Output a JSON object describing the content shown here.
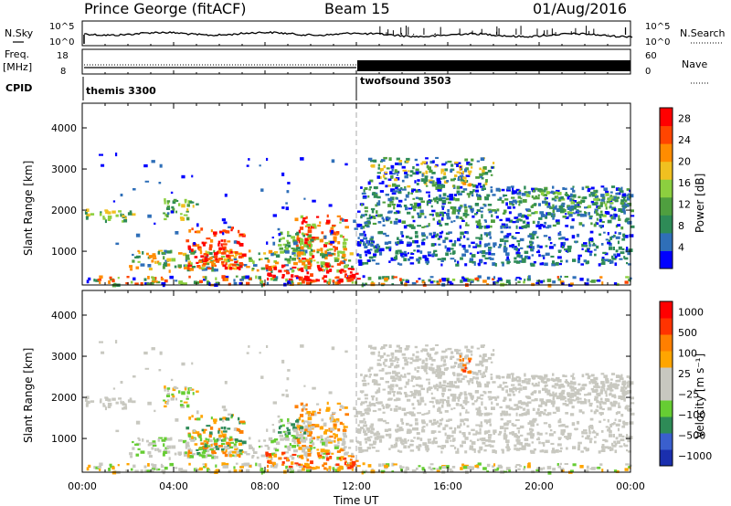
{
  "header": {
    "station": "Prince George (fitACF)",
    "beam": "Beam 15",
    "date": "01/Aug/2016"
  },
  "strip1": {
    "left_label": "N.Sky",
    "right_label": "N.Search",
    "left_ticks": [
      "10^5",
      "10^0"
    ],
    "right_ticks": [
      "10^5",
      "10^0"
    ]
  },
  "strip2": {
    "left_label_1": "Freq.",
    "left_label_2": "[MHz]",
    "right_label": "Nave",
    "left_ticks": [
      "18",
      "8"
    ],
    "right_ticks": [
      "60",
      "0"
    ]
  },
  "cpid": {
    "label": "CPID",
    "modes": [
      {
        "name": "themis 3300"
      },
      {
        "name": "twofsound 3503"
      }
    ]
  },
  "colors": {
    "power_scale": [
      "#0000ff",
      "#2f6fb8",
      "#2e8b57",
      "#4f9f3f",
      "#8ccf3f",
      "#f0c020",
      "#ff8c00",
      "#ff4500",
      "#ff0000"
    ],
    "velocity_scale": [
      "#1a2fae",
      "#3a5fcd",
      "#2e8b57",
      "#66cd33",
      "#c8c8c0",
      "#c8c8c0",
      "#ffa500",
      "#ff7f00",
      "#ff3300",
      "#ff0000"
    ]
  },
  "chart_data": [
    {
      "type": "heatmap",
      "name": "power_panel",
      "ylabel": "Slant Range [km]",
      "yticks": [
        "1000",
        "2000",
        "3000",
        "4000"
      ],
      "ylim": [
        180,
        4600
      ],
      "xlim": [
        0,
        24
      ],
      "colorbar_label": "Power [dB]",
      "colorbar_ticks": [
        "4",
        "8",
        "12",
        "16",
        "20",
        "24",
        "28"
      ],
      "colorbar_range": [
        0,
        30
      ]
    },
    {
      "type": "heatmap",
      "name": "velocity_panel",
      "ylabel": "Slant Range [km]",
      "yticks": [
        "1000",
        "2000",
        "3000",
        "4000"
      ],
      "ylim": [
        180,
        4600
      ],
      "xlim": [
        0,
        24
      ],
      "xlabel": "Time UT",
      "xticks": [
        "00:00",
        "04:00",
        "08:00",
        "12:00",
        "16:00",
        "20:00",
        "00:00"
      ],
      "colorbar_label": "Velocity [m s⁻¹]",
      "colorbar_ticks": [
        "1000",
        "500",
        "100",
        "25",
        "−25",
        "−100",
        "−500",
        "−1000"
      ]
    }
  ]
}
